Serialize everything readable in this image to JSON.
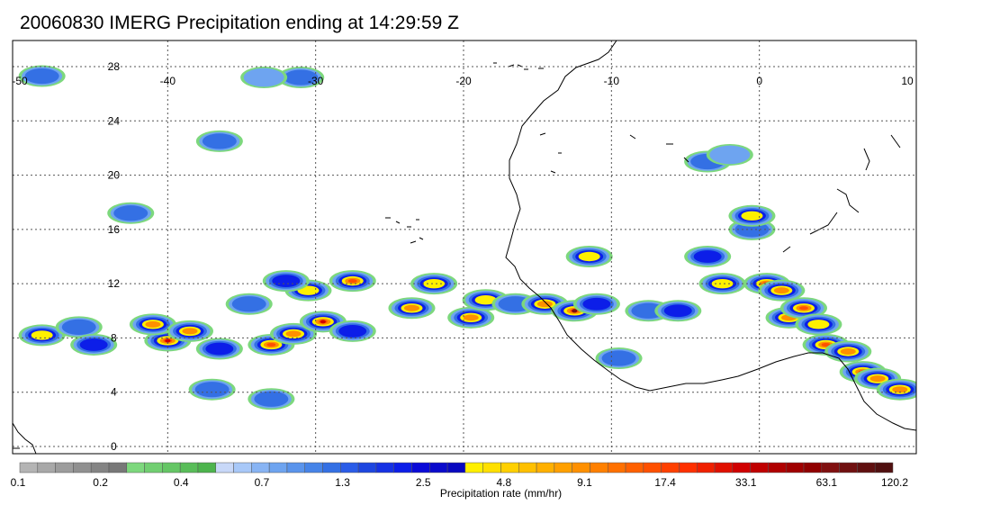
{
  "title": "20060830 IMERG Precipitation ending at 14:29:59 Z",
  "map": {
    "lon_range": [
      -50,
      10
    ],
    "lat_range": [
      -0.5,
      30
    ],
    "lon_labels": [
      "-50",
      "-40",
      "-30",
      "-20",
      "-10",
      "0",
      "10"
    ],
    "lon_values": [
      -50,
      -40,
      -30,
      -20,
      -10,
      0,
      10
    ],
    "lat_labels": [
      "28",
      "24",
      "20",
      "16",
      "12",
      "8",
      "4",
      "0"
    ],
    "lat_values": [
      28,
      24,
      20,
      16,
      12,
      8,
      4,
      0
    ],
    "gridlines": "dotted"
  },
  "colorbar": {
    "label": "Precipitation rate (mm/hr)",
    "tick_labels": [
      "0.1",
      "0.2",
      "0.4",
      "0.7",
      "1.3",
      "2.5",
      "4.8",
      "9.1",
      "17.4",
      "33.1",
      "63.1",
      "120.2"
    ],
    "colors": [
      "#b4b4b4",
      "#a8a8a8",
      "#9c9c9c",
      "#909090",
      "#848484",
      "#787878",
      "#7dd87d",
      "#71cf71",
      "#65c665",
      "#59bd59",
      "#4db44d",
      "#c8d8f8",
      "#a8c8f8",
      "#88b4f4",
      "#6ea4f0",
      "#5a94ec",
      "#4684e8",
      "#3470e4",
      "#2a5ce8",
      "#1e46e0",
      "#1632e4",
      "#0c1ee8",
      "#0a0ad8",
      "#0a0acc",
      "#0808c0",
      "#fff000",
      "#ffe000",
      "#ffd000",
      "#ffc000",
      "#ffb000",
      "#ffa000",
      "#ff9000",
      "#ff8000",
      "#ff7000",
      "#ff6000",
      "#ff5000",
      "#ff4000",
      "#ff3000",
      "#f02000",
      "#e01000",
      "#d00000",
      "#c00000",
      "#b00000",
      "#a00000",
      "#900000",
      "#801010",
      "#701010",
      "#601010",
      "#501010"
    ]
  },
  "precip_cells": [
    {
      "lon": -48.5,
      "lat": 8.2,
      "rate": 4.8
    },
    {
      "lon": -46,
      "lat": 8.8,
      "rate": 1.3
    },
    {
      "lon": -45,
      "lat": 7.5,
      "rate": 2.5
    },
    {
      "lon": -40,
      "lat": 7.8,
      "rate": 33.1
    },
    {
      "lon": -41,
      "lat": 9,
      "rate": 9.1
    },
    {
      "lon": -38.5,
      "lat": 8.5,
      "rate": 9.1
    },
    {
      "lon": -36.5,
      "lat": 7.2,
      "rate": 2.5
    },
    {
      "lon": -33,
      "lat": 7.5,
      "rate": 17.4
    },
    {
      "lon": -31.5,
      "lat": 8.3,
      "rate": 9.1
    },
    {
      "lon": -29.5,
      "lat": 9.2,
      "rate": 33.1
    },
    {
      "lon": -30.5,
      "lat": 11.5,
      "rate": 4.8
    },
    {
      "lon": -27.5,
      "lat": 12.2,
      "rate": 17.4
    },
    {
      "lon": -32,
      "lat": 12.2,
      "rate": 2.5
    },
    {
      "lon": -34.5,
      "lat": 10.5,
      "rate": 1.3
    },
    {
      "lon": -27.5,
      "lat": 8.5,
      "rate": 2.5
    },
    {
      "lon": -23.5,
      "lat": 10.2,
      "rate": 9.1
    },
    {
      "lon": -22,
      "lat": 12,
      "rate": 4.8
    },
    {
      "lon": -19.5,
      "lat": 9.5,
      "rate": 9.1
    },
    {
      "lon": -18.5,
      "lat": 10.8,
      "rate": 4.8
    },
    {
      "lon": -16.5,
      "lat": 10.5,
      "rate": 1.3
    },
    {
      "lon": -14.5,
      "lat": 10.5,
      "rate": 9.1
    },
    {
      "lon": -12.5,
      "lat": 10,
      "rate": 63.1
    },
    {
      "lon": -11.5,
      "lat": 14,
      "rate": 4.8
    },
    {
      "lon": -11,
      "lat": 10.5,
      "rate": 2.5
    },
    {
      "lon": -7.5,
      "lat": 10,
      "rate": 1.3
    },
    {
      "lon": -5.5,
      "lat": 10,
      "rate": 2.5
    },
    {
      "lon": -2.5,
      "lat": 12,
      "rate": 4.8
    },
    {
      "lon": -3.5,
      "lat": 14,
      "rate": 2.5
    },
    {
      "lon": 0.5,
      "lat": 12,
      "rate": 17.4
    },
    {
      "lon": 1.5,
      "lat": 11.5,
      "rate": 9.1
    },
    {
      "lon": 2,
      "lat": 9.5,
      "rate": 9.1
    },
    {
      "lon": 3,
      "lat": 10.2,
      "rate": 17.4
    },
    {
      "lon": 4,
      "lat": 9,
      "rate": 4.8
    },
    {
      "lon": 4.5,
      "lat": 7.5,
      "rate": 17.4
    },
    {
      "lon": 6,
      "lat": 7,
      "rate": 9.1
    },
    {
      "lon": 7,
      "lat": 5.5,
      "rate": 17.4
    },
    {
      "lon": 8,
      "lat": 5,
      "rate": 9.1
    },
    {
      "lon": 9.5,
      "lat": 4.2,
      "rate": 9.1
    },
    {
      "lon": -3.5,
      "lat": 21,
      "rate": 1.3
    },
    {
      "lon": -2,
      "lat": 21.5,
      "rate": 0.7
    },
    {
      "lon": -31,
      "lat": 27.2,
      "rate": 1.3
    },
    {
      "lon": -33.5,
      "lat": 27.2,
      "rate": 0.7
    },
    {
      "lon": -48.5,
      "lat": 27.3,
      "rate": 1.3
    },
    {
      "lon": -36.5,
      "lat": 22.5,
      "rate": 1.3
    },
    {
      "lon": -42.5,
      "lat": 17.2,
      "rate": 1.3
    },
    {
      "lon": -33,
      "lat": 3.5,
      "rate": 1.3
    },
    {
      "lon": -37,
      "lat": 4.2,
      "rate": 1.3
    },
    {
      "lon": -9.5,
      "lat": 6.5,
      "rate": 1.3
    },
    {
      "lon": -0.5,
      "lat": 16,
      "rate": 1.3
    },
    {
      "lon": -0.5,
      "lat": 17,
      "rate": 4.8
    }
  ]
}
